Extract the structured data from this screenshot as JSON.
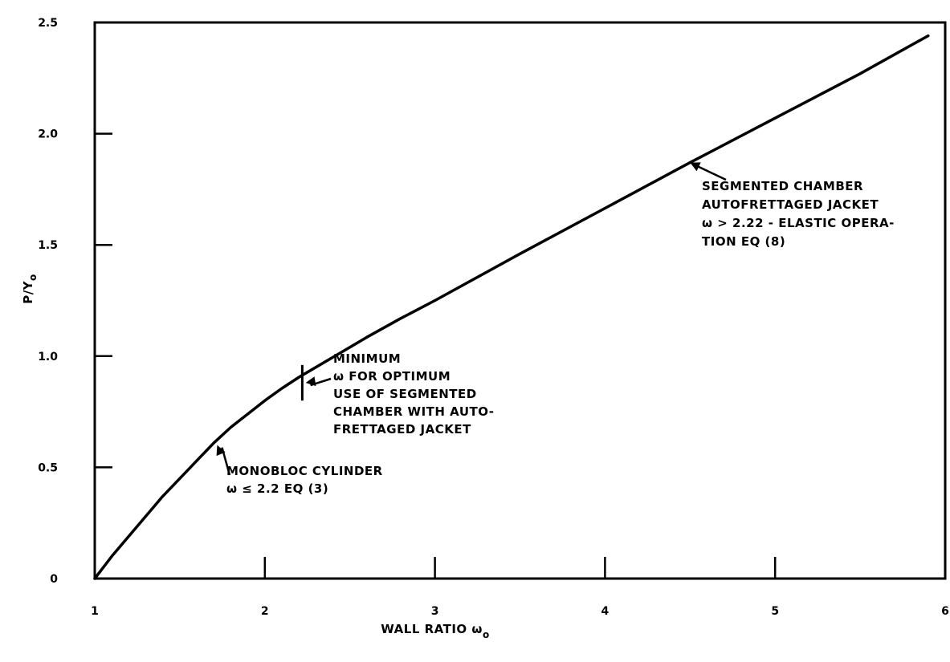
{
  "chart_data": {
    "type": "line",
    "xlabel": "WALL RATIO ω",
    "xlabel_sub": "o",
    "ylabel": "P/Y",
    "ylabel_sub": "o",
    "xlim": [
      1,
      6
    ],
    "ylim": [
      0,
      2.5
    ],
    "x_ticks": [
      {
        "value": 1,
        "label": "1"
      },
      {
        "value": 2,
        "label": "2"
      },
      {
        "value": 3,
        "label": "3"
      },
      {
        "value": 4,
        "label": "4"
      },
      {
        "value": 5,
        "label": "5"
      },
      {
        "value": 6,
        "label": "6"
      }
    ],
    "y_ticks": [
      {
        "value": 0,
        "label": "0"
      },
      {
        "value": 0.5,
        "label": "0.5"
      },
      {
        "value": 1.0,
        "label": "1.0"
      },
      {
        "value": 1.5,
        "label": "1.5"
      },
      {
        "value": 2.0,
        "label": "2.0"
      },
      {
        "value": 2.5,
        "label": "2.5"
      }
    ],
    "grid": false,
    "series": [
      {
        "x": [
          1.0,
          1.1,
          1.2,
          1.3,
          1.4,
          1.5,
          1.6,
          1.7,
          1.8,
          1.9,
          2.0,
          2.1,
          2.2,
          2.4,
          2.6,
          2.8,
          3.0,
          3.5,
          4.0,
          4.5,
          5.0,
          5.5,
          5.9
        ],
        "y": [
          0.0,
          0.1,
          0.19,
          0.28,
          0.37,
          0.45,
          0.53,
          0.61,
          0.68,
          0.74,
          0.8,
          0.855,
          0.905,
          0.995,
          1.085,
          1.17,
          1.25,
          1.46,
          1.665,
          1.87,
          2.07,
          2.27,
          2.44
        ]
      }
    ],
    "markers": [
      {
        "x": 2.22,
        "y_low": 0.8,
        "y_high": 0.96
      }
    ],
    "annotations": [
      {
        "id": "monobloc",
        "lines": [
          "MONOBLOC CYLINDER",
          "ω ≤ 2.2   EQ  (3)"
        ],
        "arrow_to": [
          1.72,
          0.6
        ]
      },
      {
        "id": "minimum",
        "lines": [
          "MINIMUM",
          "ω FOR OPTIMUM",
          "USE OF SEGMENTED",
          "CHAMBER WITH AUTO-",
          "FRETTAGED JACKET"
        ],
        "arrow_to": [
          2.24,
          0.88
        ]
      },
      {
        "id": "segmented",
        "lines": [
          "SEGMENTED CHAMBER",
          "AUTOFRETTAGED JACKET",
          "ω > 2.22 - ELASTIC OPERA-",
          "TION  EQ  (8)"
        ],
        "arrow_to": [
          4.5,
          1.87
        ]
      }
    ]
  }
}
